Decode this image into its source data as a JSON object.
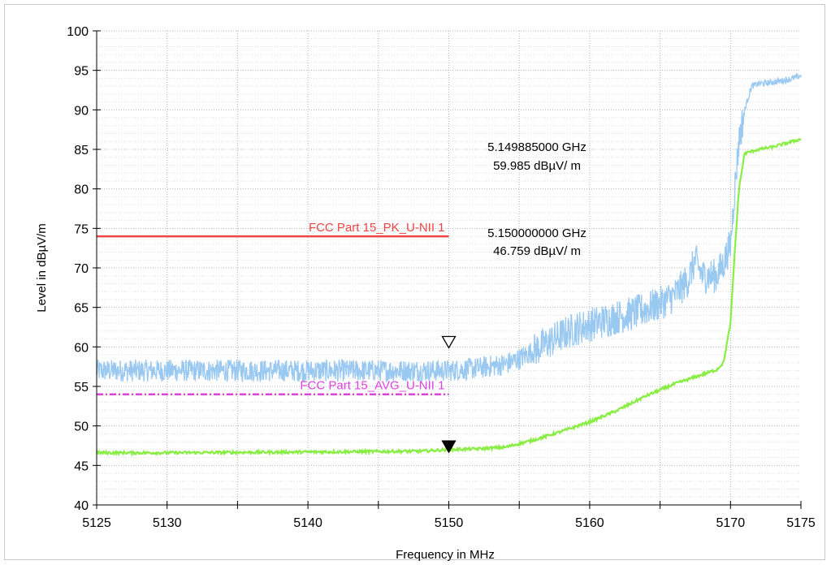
{
  "chart_data": {
    "type": "line",
    "xlabel": "Frequency in MHz",
    "ylabel": "Level in dBµV/m",
    "xlim": [
      5125,
      5175
    ],
    "ylim": [
      40,
      100
    ],
    "x_ticks": [
      5125,
      5130,
      5140,
      5150,
      5160,
      5170,
      5175
    ],
    "y_ticks": [
      40,
      45,
      50,
      55,
      60,
      65,
      70,
      75,
      80,
      85,
      90,
      95,
      100
    ],
    "grid": true,
    "series": [
      {
        "color": "#99c8f0",
        "style": "noisy",
        "x": [
          5125,
          5128,
          5132,
          5136,
          5140,
          5144,
          5148,
          5150,
          5152,
          5154,
          5155,
          5156,
          5157,
          5158,
          5159,
          5160,
          5161,
          5162,
          5163,
          5164,
          5165,
          5166,
          5167,
          5167.5,
          5168,
          5169,
          5169.5,
          5170,
          5170.3,
          5170.6,
          5171,
          5171.5,
          5172,
          5173,
          5174,
          5175
        ],
        "y": [
          57,
          57,
          57,
          57,
          57,
          57,
          57,
          57,
          57.3,
          57.8,
          58.5,
          59.5,
          60.5,
          61.5,
          62.3,
          62.8,
          63.3,
          63.8,
          64.2,
          64.8,
          65.5,
          66.5,
          68.5,
          71,
          69,
          69,
          70.5,
          73,
          80,
          86,
          90,
          93,
          93.3,
          93.5,
          93.8,
          94.3
        ]
      },
      {
        "color": "#88ee44",
        "style": "smooth",
        "x": [
          5125,
          5130,
          5140,
          5148,
          5150,
          5152,
          5154,
          5156,
          5158,
          5160,
          5162,
          5164,
          5166,
          5168,
          5169,
          5169.5,
          5170,
          5170.3,
          5170.6,
          5171,
          5172,
          5173,
          5174,
          5175
        ],
        "y": [
          46.6,
          46.6,
          46.7,
          46.8,
          47,
          47.1,
          47.3,
          48.2,
          49.3,
          50.5,
          52,
          53.8,
          55.3,
          56.5,
          57.1,
          58,
          63,
          72,
          80,
          84.5,
          85,
          85.3,
          85.8,
          86.3
        ]
      }
    ],
    "limit_lines": [
      {
        "name": "FCC Part 15_PK_U-NII 1",
        "y": 74,
        "x_start": 5125,
        "x_end": 5150,
        "color": "#ee4444",
        "dash": "solid"
      },
      {
        "name": "FCC Part 15_AVG_U-NII 1",
        "y": 54,
        "x_start": 5125,
        "x_end": 5150,
        "color": "#e040e0",
        "dash": "dashdot"
      }
    ],
    "markers": [
      {
        "x": 5150,
        "y": 59.985,
        "symbol": "open-triangle-down",
        "freq_text": "5.149885000 GHz",
        "level_text": "59.985 dBµV/ m"
      },
      {
        "x": 5150,
        "y": 46.759,
        "symbol": "filled-triangle-down",
        "freq_text": "5.150000000 GHz",
        "level_text": "46.759 dBµV/ m"
      }
    ]
  }
}
